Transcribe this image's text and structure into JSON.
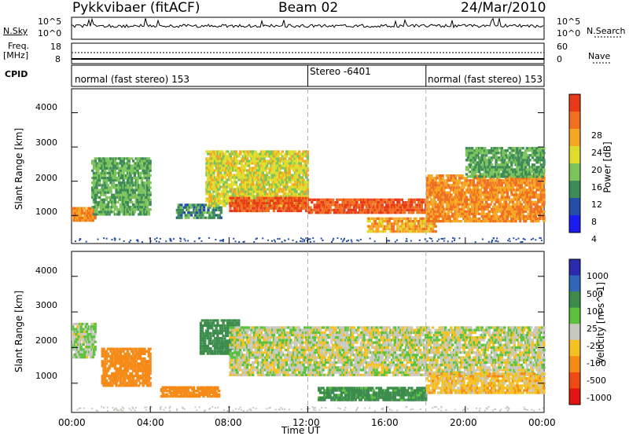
{
  "header": {
    "radar": "Pykkvibaer (fitACF)",
    "beam": "Beam 02",
    "date": "24/Mar/2010"
  },
  "strip": {
    "nsky_label": "N.Sky",
    "nsky_ticks": [
      "10^5",
      "10^0"
    ],
    "nsearch_label": "N.Search",
    "nsearch_ticks": [
      "10^5",
      "10^0"
    ],
    "freq_label": "Freq.",
    "freq_unit": "[MHz]",
    "freq_ticks": [
      "18",
      "8"
    ],
    "nave_label": "Nave",
    "nave_ticks": [
      "60",
      "0"
    ],
    "cpid_label": "CPID",
    "cpid_segments": [
      {
        "label": "normal (fast stereo) 153",
        "start_hour": 0,
        "end_hour": 12
      },
      {
        "label": "Stereo -6401",
        "start_hour": 12,
        "end_hour": 18
      },
      {
        "label": "normal (fast stereo) 153",
        "start_hour": 18,
        "end_hour": 24
      }
    ]
  },
  "axes": {
    "xlabel": "Time UT",
    "ylabel": "Slant Range [km]",
    "x_ticks": [
      "00:00",
      "04:00",
      "08:00",
      "12:00",
      "16:00",
      "20:00",
      "00:00"
    ],
    "y_ticks": [
      "1000",
      "2000",
      "3000",
      "4000"
    ]
  },
  "chart_data": [
    {
      "type": "heatmap",
      "panel": "power",
      "xlabel": "Time UT",
      "ylabel": "Slant Range [km]",
      "xlim": [
        0,
        24
      ],
      "ylim": [
        180,
        4700
      ],
      "colorbar_label": "Power [dB]",
      "colorbar_ticks": [
        "4",
        "8",
        "12",
        "16",
        "20",
        "24",
        "28"
      ],
      "colorscale": [
        "#1c1cf2",
        "#244ea8",
        "#3d8b57",
        "#7cc45a",
        "#e0dc2c",
        "#f5a623",
        "#f07020",
        "#e83a18"
      ],
      "echo_regions": [
        {
          "t0": 0.0,
          "t1": 1.2,
          "r_low": 820,
          "r_high": 1250,
          "power_db": 24
        },
        {
          "t0": 1.0,
          "t1": 4.0,
          "r_low": 1000,
          "r_high": 2700,
          "power_db": 12
        },
        {
          "t0": 5.3,
          "t1": 7.6,
          "r_low": 900,
          "r_high": 1350,
          "power_db": 10
        },
        {
          "t0": 6.8,
          "t1": 12.0,
          "r_low": 1250,
          "r_high": 2900,
          "power_db": 18
        },
        {
          "t0": 8.0,
          "t1": 12.0,
          "r_low": 1100,
          "r_high": 1550,
          "power_db": 28
        },
        {
          "t0": 12.0,
          "t1": 18.0,
          "r_low": 1050,
          "r_high": 1500,
          "power_db": 28
        },
        {
          "t0": 15.0,
          "t1": 18.5,
          "r_low": 500,
          "r_high": 950,
          "power_db": 22
        },
        {
          "t0": 18.0,
          "t1": 24.0,
          "r_low": 800,
          "r_high": 2200,
          "power_db": 24
        },
        {
          "t0": 20.0,
          "t1": 24.0,
          "r_low": 2100,
          "r_high": 3000,
          "power_db": 12
        }
      ]
    },
    {
      "type": "heatmap",
      "panel": "velocity",
      "xlabel": "Time UT",
      "ylabel": "Slant Range [km]",
      "xlim": [
        0,
        24
      ],
      "ylim": [
        180,
        4700
      ],
      "colorbar_label": "Velocity [m s^-1]",
      "colorbar_ticks": [
        "1000",
        "500",
        "100",
        "25",
        "-25",
        "-100",
        "-500",
        "-1000"
      ],
      "colorscale": [
        "#2a2ab0",
        "#2f67b8",
        "#3c8c4c",
        "#5bc23e",
        "#c8c8c0",
        "#f5c022",
        "#f58a16",
        "#ee4a14",
        "#e41414"
      ],
      "echo_regions": [
        {
          "t0": 0.0,
          "t1": 1.2,
          "r_low": 1700,
          "r_high": 2700,
          "velocity": 25
        },
        {
          "t0": 1.5,
          "t1": 4.0,
          "r_low": 900,
          "r_high": 2000,
          "velocity": -300
        },
        {
          "t0": 4.5,
          "t1": 7.5,
          "r_low": 600,
          "r_high": 900,
          "velocity": -300
        },
        {
          "t0": 6.5,
          "t1": 8.5,
          "r_low": 1800,
          "r_high": 2800,
          "velocity": 400
        },
        {
          "t0": 8.0,
          "t1": 24.0,
          "r_low": 1200,
          "r_high": 2600,
          "velocity": 0
        },
        {
          "t0": 12.5,
          "t1": 18.0,
          "r_low": 500,
          "r_high": 900,
          "velocity": 150
        },
        {
          "t0": 18.0,
          "t1": 24.0,
          "r_low": 700,
          "r_high": 1300,
          "velocity": -60
        }
      ]
    }
  ]
}
